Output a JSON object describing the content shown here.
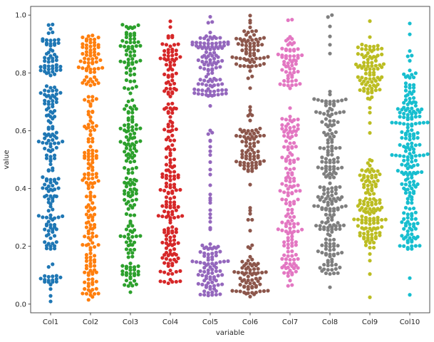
{
  "chart_data": {
    "type": "scatter",
    "subtype": "swarmplot",
    "title": "",
    "xlabel": "variable",
    "ylabel": "value",
    "ylim": [
      -0.03,
      1.03
    ],
    "y_ticks": [
      "0.0",
      "0.2",
      "0.4",
      "0.6",
      "0.8",
      "1.0"
    ],
    "grid": false,
    "categories": [
      "Col1",
      "Col2",
      "Col3",
      "Col4",
      "Col5",
      "Col6",
      "Col7",
      "Col8",
      "Col9",
      "Col10"
    ],
    "colors": [
      "#1f77b4",
      "#ff7f0e",
      "#2ca02c",
      "#d62728",
      "#9467bd",
      "#8c564b",
      "#e377c2",
      "#7f7f7f",
      "#bcbd22",
      "#17becf"
    ],
    "series": [
      {
        "name": "Col1",
        "range": [
          0.0,
          1.0
        ],
        "points_per_unit": 215,
        "dense_bands": [
          [
            0.05,
            0.1
          ],
          [
            0.19,
            0.44
          ],
          [
            0.46,
            0.76
          ],
          [
            0.78,
            0.97
          ]
        ]
      },
      {
        "name": "Col2",
        "range": [
          0.0,
          1.0
        ],
        "points_per_unit": 215,
        "dense_bands": [
          [
            0.03,
            0.18
          ],
          [
            0.2,
            0.72
          ],
          [
            0.75,
            0.93
          ]
        ]
      },
      {
        "name": "Col3",
        "range": [
          0.0,
          1.0
        ],
        "points_per_unit": 215,
        "dense_bands": [
          [
            0.06,
            0.29
          ],
          [
            0.3,
            0.72
          ],
          [
            0.74,
            0.97
          ]
        ]
      },
      {
        "name": "Col4",
        "range": [
          0.0,
          1.0
        ],
        "points_per_unit": 215,
        "dense_bands": [
          [
            0.07,
            0.27
          ],
          [
            0.28,
            0.7
          ],
          [
            0.71,
            0.93
          ]
        ]
      },
      {
        "name": "Col5",
        "range": [
          0.0,
          1.0
        ],
        "points_per_unit": 215,
        "dense_bands": [
          [
            0.03,
            0.21
          ],
          [
            0.72,
            0.93
          ]
        ]
      },
      {
        "name": "Col6",
        "range": [
          0.0,
          1.0
        ],
        "points_per_unit": 215,
        "dense_bands": [
          [
            0.03,
            0.17
          ],
          [
            0.46,
            0.61
          ],
          [
            0.82,
            0.95
          ]
        ]
      },
      {
        "name": "Col7",
        "range": [
          0.0,
          1.0
        ],
        "points_per_unit": 215,
        "dense_bands": [
          [
            0.06,
            0.47
          ],
          [
            0.48,
            0.65
          ],
          [
            0.75,
            0.92
          ]
        ]
      },
      {
        "name": "Col8",
        "range": [
          0.0,
          1.0
        ],
        "points_per_unit": 215,
        "dense_bands": [
          [
            0.1,
            0.31
          ],
          [
            0.32,
            0.71
          ]
        ]
      },
      {
        "name": "Col9",
        "range": [
          0.0,
          1.0
        ],
        "points_per_unit": 215,
        "dense_bands": [
          [
            0.19,
            0.49
          ],
          [
            0.71,
            0.9
          ]
        ]
      },
      {
        "name": "Col10",
        "range": [
          0.02,
          1.0
        ],
        "points_per_unit": 215,
        "dense_bands": [
          [
            0.19,
            0.8
          ]
        ]
      }
    ]
  }
}
